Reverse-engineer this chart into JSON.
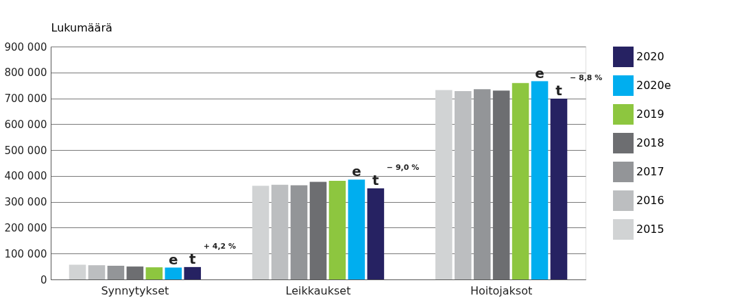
{
  "chart_data": {
    "type": "bar",
    "ylabel": "Lukumäärä",
    "categories": [
      "Synnytykset",
      "Leikkaukset",
      "Hoitojaksot"
    ],
    "series": [
      {
        "name": "2015",
        "color": "#d1d3d4",
        "values": [
          57000,
          362000,
          732000
        ]
      },
      {
        "name": "2016",
        "color": "#bcbec0",
        "values": [
          55000,
          366000,
          728000
        ]
      },
      {
        "name": "2017",
        "color": "#939598",
        "values": [
          53000,
          364000,
          735000
        ]
      },
      {
        "name": "2018",
        "color": "#6d6e71",
        "values": [
          50000,
          377000,
          730000
        ]
      },
      {
        "name": "2019",
        "color": "#8dc63f",
        "values": [
          47000,
          381000,
          759000
        ]
      },
      {
        "name": "2020e",
        "color": "#00aeef",
        "values": [
          46000,
          386000,
          766000
        ],
        "value_labels": [
          "e",
          "e",
          "e"
        ]
      },
      {
        "name": "2020",
        "color": "#262262",
        "values": [
          48000,
          352000,
          699000
        ],
        "value_labels": [
          "t",
          "t",
          "t"
        ]
      }
    ],
    "ylim": [
      0,
      900000
    ],
    "yticks": [
      {
        "value": 0,
        "label": "0"
      },
      {
        "value": 100000,
        "label": "100 000"
      },
      {
        "value": 200000,
        "label": "200 000"
      },
      {
        "value": 300000,
        "label": "300 000"
      },
      {
        "value": 400000,
        "label": "400 000"
      },
      {
        "value": 500000,
        "label": "500 000"
      },
      {
        "value": 600000,
        "label": "600 000"
      },
      {
        "value": 700000,
        "label": "700 000"
      },
      {
        "value": 800000,
        "label": "800 000"
      },
      {
        "value": 900000,
        "label": "900 000"
      }
    ],
    "annotations": [
      "+ 4,2 %",
      "− 9,0 %",
      "− 8,8 %"
    ],
    "grid": "y",
    "legend": "right"
  }
}
